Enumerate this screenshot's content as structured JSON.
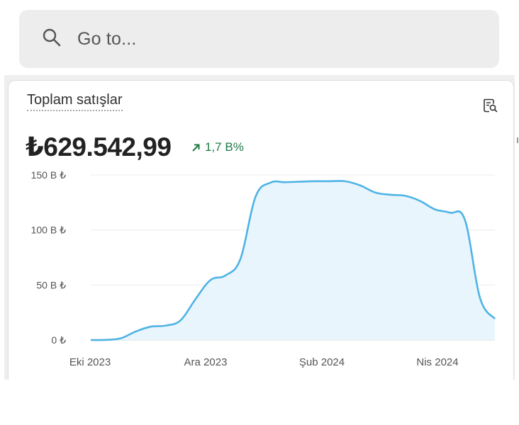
{
  "search": {
    "placeholder": "Go to...",
    "icon": "search-icon"
  },
  "card": {
    "title": "Toplam satışlar",
    "metric": "₺629.542,99",
    "delta": "1,7 B%",
    "delta_color": "#1f7a45",
    "icon": "report-search-icon"
  },
  "chart_data": {
    "type": "area",
    "series": [
      {
        "values": [
          0,
          0.1,
          1.5,
          7.7,
          12.1,
          13.1,
          17.9,
          37.2,
          54.5,
          58.7,
          73.7,
          129.9,
          143.0,
          143.4,
          143.9,
          144.3,
          144.3,
          144.3,
          140.5,
          134.1,
          132.0,
          131.1,
          126.4,
          118.7,
          115.7,
          109.0,
          38.5,
          19.2
        ]
      }
    ],
    "x_ticks": [
      "Eki 2023",
      "Ara 2023",
      "Şub 2024",
      "Nis 2024"
    ],
    "y_ticks": [
      "0 ₺",
      "50 B ₺",
      "100 B ₺",
      "150 B ₺"
    ],
    "ylim": [
      0,
      150
    ],
    "line_color": "#4eb3e6",
    "fill_color": "#e9f5fc",
    "grid": true
  }
}
